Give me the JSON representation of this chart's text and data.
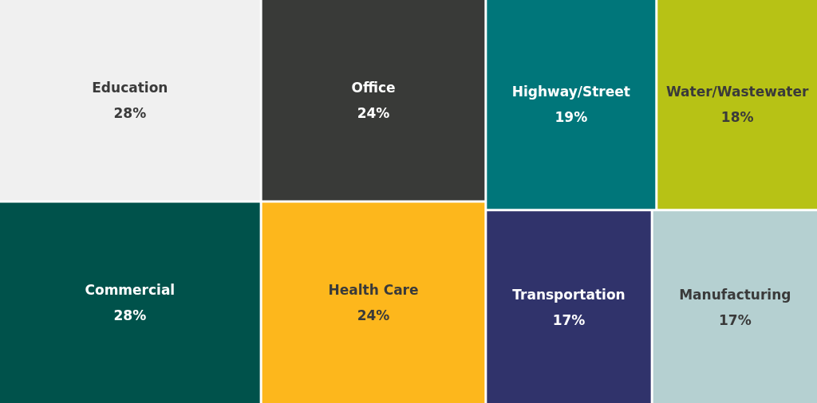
{
  "chart_data": {
    "type": "other",
    "categories": [
      "Commercial",
      "Health Care",
      "Office",
      "Education",
      "Highway/Street",
      "Water/Wastewater",
      "Manufacturing",
      "Transportation"
    ],
    "values": [
      28,
      24,
      24,
      28,
      19,
      18,
      17,
      17
    ],
    "value_labels": [
      "28%",
      "24%",
      "24%",
      "28%",
      "19%",
      "18%",
      "17%",
      "17%"
    ],
    "colors": [
      "#00524b",
      "#fdb71c",
      "#393a38",
      "#f0f0f0",
      "#00767a",
      "#b7c215",
      "#b5d0d1",
      "#30336b"
    ]
  }
}
